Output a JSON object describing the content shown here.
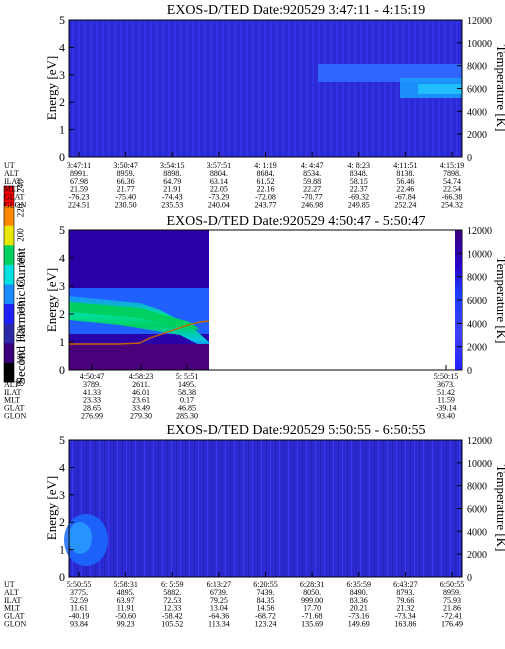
{
  "figure": {
    "colorbar_left": {
      "label": "Second Harmonic Current",
      "ticks": [
        "80",
        "100",
        "120",
        "140",
        "160",
        "180",
        "200",
        "220",
        "240"
      ],
      "colors": [
        "#000000",
        "#3a007a",
        "#2a2aa8",
        "#2020ff",
        "#1a8cff",
        "#00e0e0",
        "#00d060",
        "#e8e800",
        "#ff8800",
        "#ff0000"
      ]
    },
    "panels": [
      {
        "id": "panel1",
        "title": "EXOS-D/TED   Date:920529  3:47:11 - 4:15:19",
        "ylabel": "Energy [eV]",
        "y2label": "Temperature [K]",
        "yticks": [
          "0",
          "1",
          "2",
          "3",
          "4",
          "5"
        ],
        "y2ticks": [
          "0",
          "2000",
          "4000",
          "6000",
          "8000",
          "10000",
          "12000"
        ],
        "table": {
          "row_labels": [
            "UT",
            "ALT",
            "ILAT",
            "MLT",
            "GLAT",
            "GLON"
          ],
          "columns": [
            [
              "3:47:11",
              "8991.",
              "67.98",
              "21.59",
              "-76.23",
              "224.51"
            ],
            [
              "3:50:47",
              "8959.",
              "66.36",
              "21.77",
              "-75.40",
              "230.50"
            ],
            [
              "3:54:15",
              "8898.",
              "64.79",
              "21.91",
              "-74.43",
              "235.53"
            ],
            [
              "3:57:51",
              "8804.",
              "63.14",
              "22.05",
              "-73.29",
              "240.04"
            ],
            [
              "4: 1:19",
              "8684.",
              "61.52",
              "22.16",
              "-72.08",
              "243.77"
            ],
            [
              "4: 4:47",
              "8534.",
              "59.88",
              "22.27",
              "-70.77",
              "246.98"
            ],
            [
              "4: 8:23",
              "8348.",
              "58.15",
              "22.37",
              "-69.32",
              "249.85"
            ],
            [
              "4:11:51",
              "8138.",
              "56.46",
              "22.46",
              "-67.84",
              "252.24"
            ],
            [
              "4:15:19",
              "7898.",
              "54.74",
              "22.54",
              "-66.38",
              "254.32"
            ]
          ]
        }
      },
      {
        "id": "panel2",
        "title": "EXOS-D/TED   Date:920529  4:50:47 - 5:50:47",
        "ylabel": "Energy [eV]",
        "y2label": "Temperature [K]",
        "yticks": [
          "0",
          "1",
          "2",
          "3",
          "4",
          "5"
        ],
        "y2ticks": [
          "0",
          "2000",
          "4000",
          "6000",
          "8000",
          "10000",
          "12000"
        ],
        "table": {
          "row_labels": [
            "UT",
            "ALT",
            "ILAT",
            "MLT",
            "GLAT",
            "GLON"
          ],
          "columns": [
            [
              "4:50:47",
              "3789.",
              "41.33",
              "23.33",
              "28.65",
              "276.99"
            ],
            [
              "4:58:23",
              "2611.",
              "46.01",
              "23.61",
              "33.49",
              "279.30"
            ],
            [
              "5:  5:51",
              "1495.",
              "58.38",
              "0.17",
              "46.85",
              "285.30"
            ],
            [
              "5:50:15",
              "3673.",
              "51.42",
              "11.59",
              "-39.14",
              "93.40"
            ]
          ]
        }
      },
      {
        "id": "panel3",
        "title": "EXOS-D/TED   Date:920529  5:50:55 - 6:50:55",
        "ylabel": "Energy [eV]",
        "y2label": "Temperature [K]",
        "yticks": [
          "0",
          "1",
          "2",
          "3",
          "4",
          "5"
        ],
        "y2ticks": [
          "0",
          "2000",
          "4000",
          "6000",
          "8000",
          "10000",
          "12000"
        ],
        "table": {
          "row_labels": [
            "UT",
            "ALT",
            "ILAT",
            "MLT",
            "GLAT",
            "GLON"
          ],
          "columns": [
            [
              "5:50:55",
              "3775.",
              "52.59",
              "11.61",
              "-40.19",
              "93.84"
            ],
            [
              "5:58:31",
              "4895.",
              "63.97",
              "11.91",
              "-50.60",
              "99.23"
            ],
            [
              "6:  5:59",
              "5882.",
              "72.53",
              "12.33",
              "-58.42",
              "105.52"
            ],
            [
              "6:13:27",
              "6739.",
              "79.25",
              "13.04",
              "-64.36",
              "113.34"
            ],
            [
              "6:20:55",
              "7439.",
              "84.35",
              "14.56",
              "-68.72",
              "123.24"
            ],
            [
              "6:28:31",
              "8050.",
              "999.00",
              "17.70",
              "-71.68",
              "135.69"
            ],
            [
              "6:35:59",
              "8490.",
              "83.36",
              "20.21",
              "-73.16",
              "149.69"
            ],
            [
              "6:43:27",
              "8793.",
              "79.66",
              "21.32",
              "-73.34",
              "163.86"
            ],
            [
              "6:50:55",
              "8959.",
              "75.93",
              "21.86",
              "-72.41",
              "176.49"
            ]
          ]
        }
      }
    ]
  },
  "chart_data": [
    {
      "type": "heatmap",
      "title": "EXOS-D/TED   Date:920529  3:47:11 - 4:15:19",
      "ylabel": "Energy [eV]",
      "y2label": "Temperature [K]",
      "ylim": [
        0,
        5
      ],
      "y2lim": [
        0,
        12000
      ],
      "x": [
        "3:47:11",
        "3:50:47",
        "3:54:15",
        "3:57:51",
        "4: 1:19",
        "4: 4:47",
        "4: 8:23",
        "4:11:51",
        "4:15:19"
      ],
      "features": [
        {
          "energy_band": [
            2.4,
            3.1
          ],
          "x_from": "4: 4:47",
          "x_to": "4:15:19",
          "level": "140-160"
        },
        {
          "energy_band": [
            2.1,
            2.8
          ],
          "x_from": "4:11:51",
          "x_to": "4:15:19",
          "level": "160-180"
        }
      ]
    },
    {
      "type": "heatmap",
      "title": "EXOS-D/TED   Date:920529  4:50:47 - 5:50:47",
      "ylabel": "Energy [eV]",
      "y2label": "Temperature [K]",
      "ylim": [
        0,
        5
      ],
      "y2lim": [
        0,
        12000
      ],
      "x": [
        "4:50:47",
        "4:58:23",
        "5:  5:51",
        "5:50:15"
      ],
      "features": [
        {
          "energy_band": [
            1.9,
            2.4
          ],
          "x_from": "4:50:47",
          "x_to": "5:  5:51",
          "level": "180-200"
        },
        {
          "energy_band": [
            1.3,
            2.9
          ],
          "x_from": "4:50:47",
          "x_to": "5:  5:51",
          "level": "160-180"
        }
      ],
      "temperature_line": {
        "x": [
          0.0,
          0.25,
          0.45,
          0.6,
          0.78,
          1.0
        ],
        "y_K": [
          2300,
          2250,
          2400,
          2900,
          3600,
          3900
        ]
      }
    },
    {
      "type": "heatmap",
      "title": "EXOS-D/TED   Date:920529  5:50:55 - 6:50:55",
      "ylabel": "Energy [eV]",
      "y2label": "Temperature [K]",
      "ylim": [
        0,
        5
      ],
      "y2lim": [
        0,
        12000
      ],
      "x": [
        "5:50:55",
        "5:58:31",
        "6:  5:59",
        "6:13:27",
        "6:20:55",
        "6:28:31",
        "6:35:59",
        "6:43:27",
        "6:50:55"
      ],
      "features": [
        {
          "energy_band": [
            0.8,
            2.6
          ],
          "x_from": "5:50:55",
          "x_to": "5:58:31",
          "level": "140-160"
        }
      ]
    }
  ]
}
